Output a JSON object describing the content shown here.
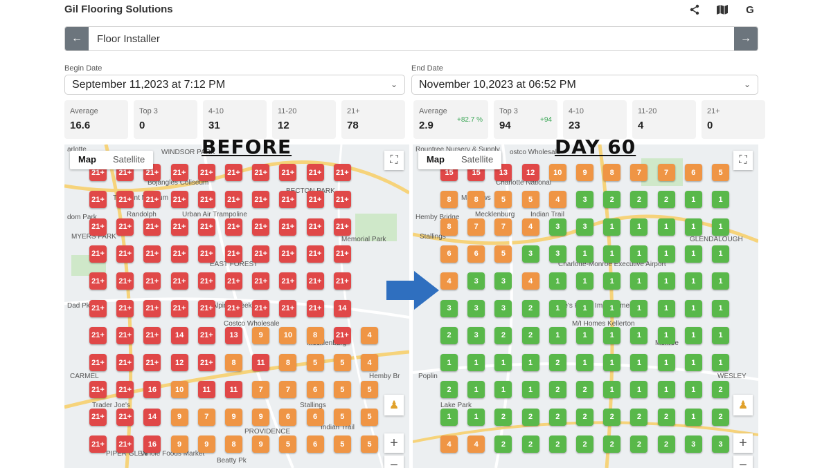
{
  "app": {
    "title": "Gil Flooring Solutions"
  },
  "top_icons": [
    "share-icon",
    "map-icon",
    "google-icon"
  ],
  "google_glyph": "G",
  "search": {
    "value": "Floor Installer"
  },
  "begin": {
    "label": "Begin Date",
    "value": "September 11,2023 at 7:12 PM",
    "stats": [
      {
        "label": "Average",
        "value": "16.6"
      },
      {
        "label": "Top 3",
        "value": "0"
      },
      {
        "label": "4-10",
        "value": "31"
      },
      {
        "label": "11-20",
        "value": "12"
      },
      {
        "label": "21+",
        "value": "78"
      }
    ]
  },
  "end": {
    "label": "End Date",
    "value": "November 10,2023 at 06:52 PM",
    "stats": [
      {
        "label": "Average",
        "value": "2.9",
        "delta": "+82.7 %"
      },
      {
        "label": "Top 3",
        "value": "94",
        "delta": "+94"
      },
      {
        "label": "4-10",
        "value": "23"
      },
      {
        "label": "11-20",
        "value": "4"
      },
      {
        "label": "21+",
        "value": "0"
      }
    ]
  },
  "map_controls": {
    "map": "Map",
    "satellite": "Satellite"
  },
  "labels": {
    "before": "BEFORE",
    "after": "DAY 60"
  },
  "colors": {
    "red": "#e04848",
    "orange": "#ef9545",
    "green": "#59b84a",
    "arrow": "#2f6fbf"
  },
  "map_left": {
    "places": [
      "arlotte",
      "WINDSOR PARK",
      "Bojangles Coliseum",
      "The Mint Museum",
      "Randolph",
      "dom Park",
      "MYERS PARK",
      "Urban Air Trampoline",
      "Memorial Park",
      "EAST FOREST",
      "McAlpine Creek Park",
      "Costco Wholesale",
      "Mecklenburg",
      "Hemby Br",
      "CARMEL",
      "Trader Joe's",
      "Stallings",
      "Indian Trail",
      "PROVIDENCE",
      "Whole Foods Market",
      "PIPER GLEN",
      "Beatty Pk",
      "Dad Pk",
      "BECTON PARK"
    ],
    "grid": [
      [
        "21+",
        "21+",
        "21+",
        "21+",
        "21+",
        "21+",
        "21+",
        "21+",
        "21+",
        "21+"
      ],
      [
        "21+",
        "21+",
        "21+",
        "21+",
        "21+",
        "21+",
        "21+",
        "21+",
        "21+",
        "21+"
      ],
      [
        "21+",
        "21+",
        "21+",
        "21+",
        "21+",
        "21+",
        "21+",
        "21+",
        "21+",
        "21+"
      ],
      [
        "21+",
        "21+",
        "21+",
        "21+",
        "21+",
        "21+",
        "21+",
        "21+",
        "21+",
        "21+"
      ],
      [
        "21+",
        "21+",
        "21+",
        "21+",
        "21+",
        "21+",
        "21+",
        "21+",
        "21+",
        "21+"
      ],
      [
        "21+",
        "21+",
        "21+",
        "21+",
        "21+",
        "21+",
        "21+",
        "21+",
        "21+",
        "14"
      ],
      [
        "21+",
        "21+",
        "21+",
        "14",
        "21+",
        "13",
        "9",
        "10",
        "8",
        "21+",
        "4"
      ],
      [
        "21+",
        "21+",
        "21+",
        "12",
        "21+",
        "8",
        "11",
        "8",
        "5",
        "5",
        "4"
      ],
      [
        "21+",
        "21+",
        "16",
        "10",
        "11",
        "11",
        "7",
        "7",
        "6",
        "5",
        "5"
      ],
      [
        "21+",
        "21+",
        "14",
        "9",
        "7",
        "9",
        "9",
        "6",
        "6",
        "5",
        "5"
      ],
      [
        "21+",
        "21+",
        "16",
        "9",
        "9",
        "8",
        "9",
        "5",
        "6",
        "5",
        "5"
      ]
    ]
  },
  "map_right": {
    "places": [
      "Rountree Nursery & Supply",
      "ostco Wholesale",
      "Charlotte National",
      "Matthews",
      "Mecklenburg",
      "Hemby Bridge",
      "Stallings",
      "Indian Trail",
      "GLENDALOUGH",
      "Charlotte-Monroe Executive Airport",
      "Lowe's Home Improvement",
      "M/I Homes Kellerton",
      "Monroe",
      "WESLEY",
      "Poplin",
      "Lake Park"
    ],
    "grid": [
      [
        "15",
        "15",
        "13",
        "12",
        "10",
        "9",
        "8",
        "7",
        "7",
        "6",
        "5"
      ],
      [
        "8",
        "8",
        "5",
        "5",
        "4",
        "3",
        "2",
        "2",
        "2",
        "1",
        "1"
      ],
      [
        "8",
        "7",
        "7",
        "4",
        "3",
        "3",
        "1",
        "1",
        "1",
        "1",
        "1"
      ],
      [
        "6",
        "6",
        "5",
        "3",
        "3",
        "1",
        "1",
        "1",
        "1",
        "1",
        "1"
      ],
      [
        "4",
        "3",
        "3",
        "4",
        "1",
        "1",
        "1",
        "1",
        "1",
        "1",
        "1"
      ],
      [
        "3",
        "3",
        "3",
        "2",
        "1",
        "1",
        "1",
        "1",
        "1",
        "1",
        "1"
      ],
      [
        "2",
        "3",
        "2",
        "2",
        "1",
        "1",
        "1",
        "1",
        "1",
        "1",
        "1"
      ],
      [
        "1",
        "1",
        "1",
        "1",
        "2",
        "1",
        "1",
        "1",
        "1",
        "1",
        "1"
      ],
      [
        "2",
        "1",
        "1",
        "1",
        "2",
        "2",
        "1",
        "1",
        "1",
        "1",
        "2"
      ],
      [
        "1",
        "1",
        "2",
        "2",
        "2",
        "2",
        "2",
        "2",
        "2",
        "1",
        "2"
      ],
      [
        "4",
        "4",
        "2",
        "2",
        "2",
        "2",
        "2",
        "2",
        "2",
        "3",
        "3"
      ]
    ]
  }
}
